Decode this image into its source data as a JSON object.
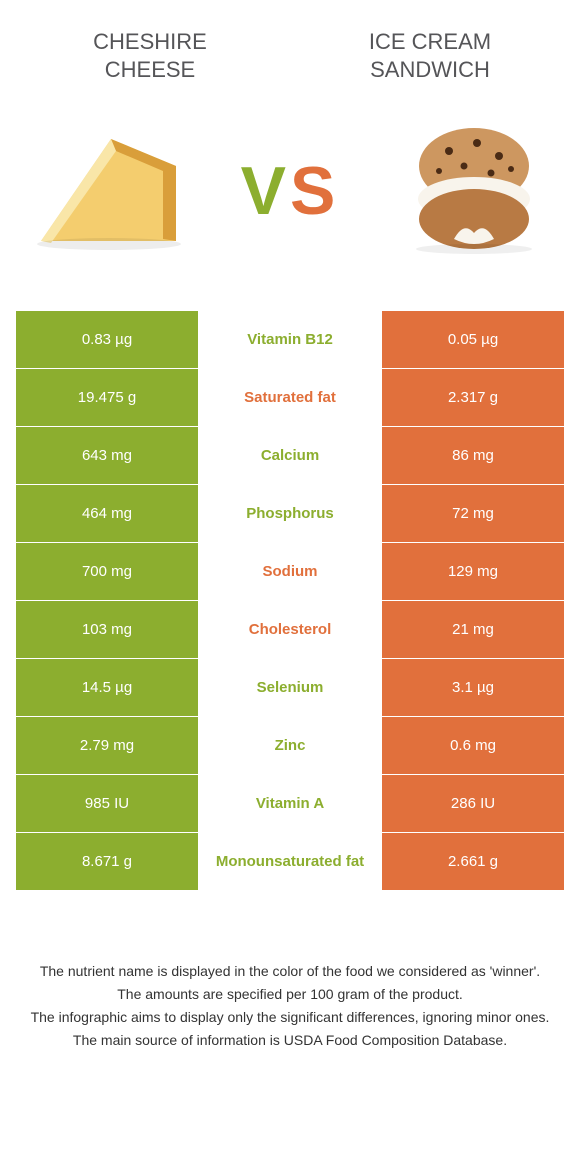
{
  "colors": {
    "left": "#8cae2f",
    "right": "#e1703c",
    "rowBorder": "#ffffff",
    "textHeader": "#555558",
    "footerText": "#333333"
  },
  "header": {
    "leftTitle": "CHESHIRE\nCHEESE",
    "rightTitle": "ICE CREAM\nSANDWICH"
  },
  "vs": {
    "v": "V",
    "s": "S"
  },
  "rows": [
    {
      "left": "0.83 µg",
      "label": "Vitamin B12",
      "right": "0.05 µg",
      "winner": "left"
    },
    {
      "left": "19.475 g",
      "label": "Saturated fat",
      "right": "2.317 g",
      "winner": "right"
    },
    {
      "left": "643 mg",
      "label": "Calcium",
      "right": "86 mg",
      "winner": "left"
    },
    {
      "left": "464 mg",
      "label": "Phosphorus",
      "right": "72 mg",
      "winner": "left"
    },
    {
      "left": "700 mg",
      "label": "Sodium",
      "right": "129 mg",
      "winner": "right"
    },
    {
      "left": "103 mg",
      "label": "Cholesterol",
      "right": "21 mg",
      "winner": "right"
    },
    {
      "left": "14.5 µg",
      "label": "Selenium",
      "right": "3.1 µg",
      "winner": "left"
    },
    {
      "left": "2.79 mg",
      "label": "Zinc",
      "right": "0.6 mg",
      "winner": "left"
    },
    {
      "left": "985 IU",
      "label": "Vitamin A",
      "right": "286 IU",
      "winner": "left"
    },
    {
      "left": "8.671 g",
      "label": "Monounsaturated fat",
      "right": "2.661 g",
      "winner": "left"
    }
  ],
  "footer": {
    "line1": "The nutrient name is displayed in the color of the food we considered as 'winner'.",
    "line2": "The amounts are specified per 100 gram of the product.",
    "line3": "The infographic aims to display only the significant differences, ignoring minor ones.",
    "line4": "The main source of information is USDA Food Composition Database."
  }
}
